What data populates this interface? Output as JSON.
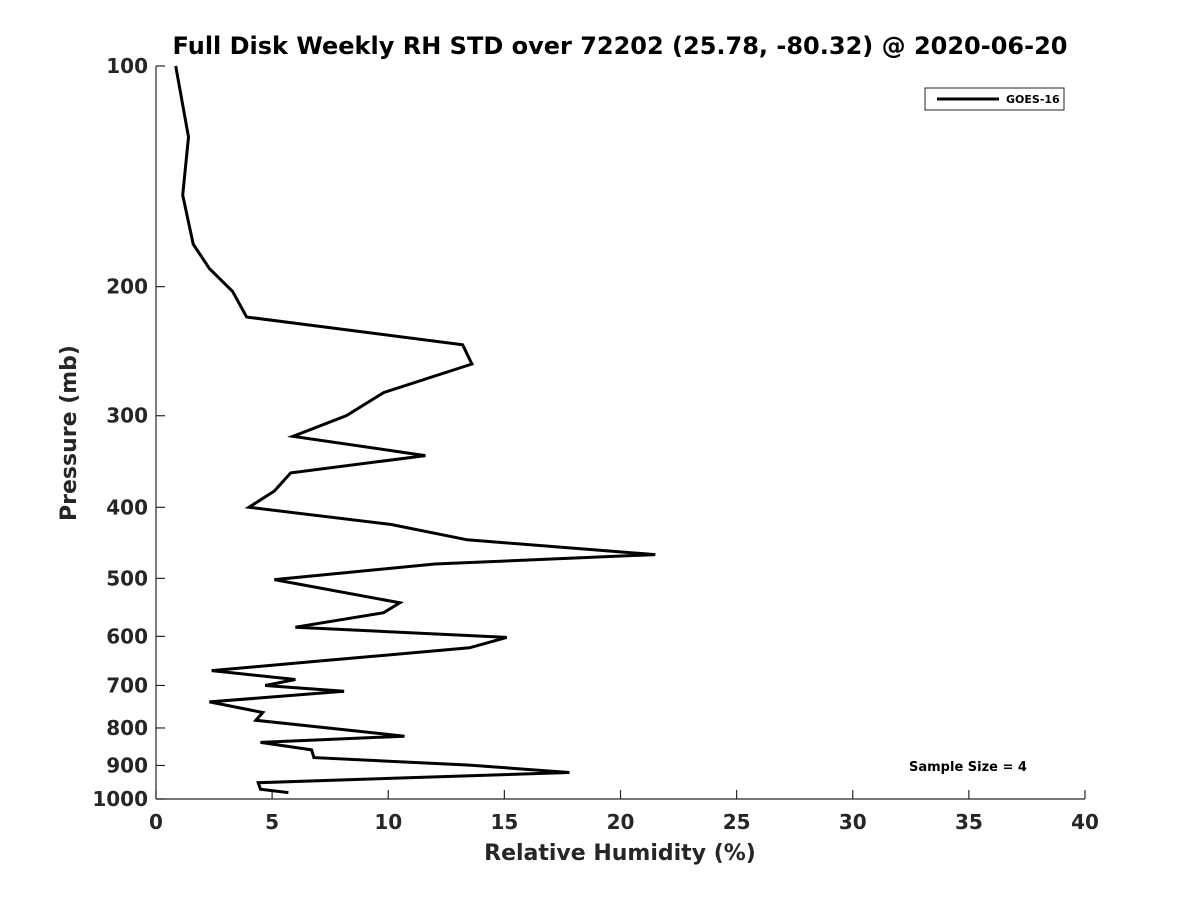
{
  "chart_data": {
    "type": "line",
    "title": "Full Disk Weekly RH STD over 72202 (25.78, -80.32) @ 2020-06-20",
    "xlabel": "Relative Humidity (%)",
    "ylabel": "Pressure (mb)",
    "xlim": [
      0,
      40
    ],
    "ylim": [
      100,
      1000
    ],
    "yscale": "log",
    "yreversed": true,
    "xticks": [
      0,
      5,
      10,
      15,
      20,
      25,
      30,
      35,
      40
    ],
    "yticks": [
      100,
      200,
      300,
      400,
      500,
      600,
      700,
      800,
      900,
      1000
    ],
    "grid": false,
    "legend_position": "top-right",
    "annotation": "Sample Size = 4",
    "series": [
      {
        "name": "GOES-16",
        "color": "#000000",
        "points": [
          [
            0.85,
            100
          ],
          [
            1.4,
            125
          ],
          [
            1.15,
            150
          ],
          [
            1.6,
            175
          ],
          [
            2.3,
            189
          ],
          [
            3.3,
            203
          ],
          [
            3.9,
            220
          ],
          [
            13.2,
            240
          ],
          [
            13.6,
            255
          ],
          [
            9.8,
            279
          ],
          [
            8.2,
            300
          ],
          [
            5.9,
            320
          ],
          [
            11.6,
            340
          ],
          [
            5.8,
            359
          ],
          [
            5.1,
            380
          ],
          [
            4.0,
            400
          ],
          [
            10.1,
            422
          ],
          [
            13.4,
            443
          ],
          [
            21.5,
            464
          ],
          [
            12.0,
            478
          ],
          [
            5.1,
            502
          ],
          [
            10.5,
            540
          ],
          [
            9.8,
            557
          ],
          [
            6.0,
            583
          ],
          [
            15.1,
            602
          ],
          [
            13.5,
            622
          ],
          [
            7.1,
            648
          ],
          [
            2.4,
            668
          ],
          [
            6.0,
            687
          ],
          [
            4.7,
            700
          ],
          [
            8.1,
            713
          ],
          [
            2.3,
            737
          ],
          [
            4.6,
            762
          ],
          [
            4.3,
            781
          ],
          [
            10.7,
            821
          ],
          [
            4.5,
            837
          ],
          [
            6.7,
            857
          ],
          [
            6.8,
            878
          ],
          [
            13.5,
            899
          ],
          [
            17.8,
            920
          ],
          [
            4.4,
            950
          ],
          [
            4.5,
            970
          ],
          [
            5.7,
            980
          ]
        ]
      }
    ]
  }
}
